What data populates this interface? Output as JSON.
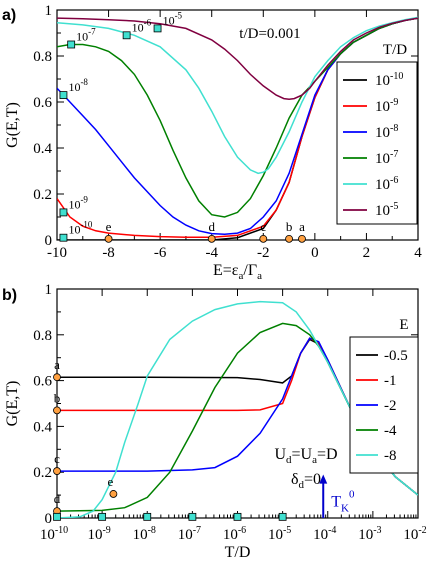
{
  "chart_data": [
    {
      "panel": "a)",
      "type": "line",
      "xlabel_main": "E=ε",
      "xlabel_sub1": "a",
      "xlabel_mid": "/Γ",
      "xlabel_sub2": "a",
      "ylabel": "G(E,T)",
      "xlim": [
        -10,
        4
      ],
      "ylim": [
        0,
        1
      ],
      "xticks": [
        -10,
        -8,
        -6,
        -4,
        -2,
        0,
        2,
        4
      ],
      "yticks": [
        0,
        0.2,
        0.4,
        0.6,
        0.8,
        1
      ],
      "ytick_labels": [
        "0",
        "0.2",
        "0.4",
        "0.6",
        "0.8",
        "1"
      ],
      "annotation": "t/D=0.001",
      "legend_title": "T/D",
      "legend_position": "right",
      "series": [
        {
          "name": "10^-10",
          "base": "10",
          "exp": "-10",
          "color": "#000000",
          "x": [
            -10,
            -9,
            -8,
            -6,
            -4,
            -3,
            -2,
            -1.5,
            -1,
            -0.5,
            0,
            0.5,
            1,
            1.5,
            2,
            2.5,
            3,
            3.5,
            4
          ],
          "y": [
            0.0,
            0.0,
            0.0,
            0.0,
            0.0,
            0.01,
            0.05,
            0.13,
            0.25,
            0.45,
            0.62,
            0.74,
            0.81,
            0.86,
            0.89,
            0.92,
            0.94,
            0.955,
            0.965
          ]
        },
        {
          "name": "10^-9",
          "base": "10",
          "exp": "-9",
          "color": "#ff0000",
          "x": [
            -10,
            -9.5,
            -9,
            -8.5,
            -8,
            -7,
            -6,
            -5,
            -4,
            -3,
            -2,
            -1.5,
            -1,
            -0.5,
            0,
            0.5,
            1,
            1.5,
            2,
            2.5,
            3,
            3.5,
            4
          ],
          "y": [
            0.18,
            0.1,
            0.06,
            0.04,
            0.03,
            0.02,
            0.015,
            0.012,
            0.012,
            0.02,
            0.06,
            0.13,
            0.25,
            0.45,
            0.62,
            0.74,
            0.81,
            0.86,
            0.89,
            0.92,
            0.94,
            0.955,
            0.965
          ]
        },
        {
          "name": "10^-8",
          "base": "10",
          "exp": "-8",
          "color": "#0000ff",
          "x": [
            -10,
            -9.5,
            -9,
            -8.5,
            -8,
            -7.5,
            -7,
            -6.5,
            -6,
            -5.5,
            -5,
            -4.5,
            -4,
            -3.5,
            -3,
            -2.5,
            -2,
            -1.5,
            -1,
            -0.5,
            0,
            0.5,
            1,
            1.5,
            2,
            2.5,
            3,
            3.5,
            4
          ],
          "y": [
            0.66,
            0.6,
            0.54,
            0.48,
            0.41,
            0.34,
            0.27,
            0.21,
            0.15,
            0.1,
            0.065,
            0.04,
            0.028,
            0.025,
            0.03,
            0.05,
            0.1,
            0.17,
            0.29,
            0.46,
            0.63,
            0.74,
            0.81,
            0.86,
            0.89,
            0.92,
            0.94,
            0.955,
            0.965
          ]
        },
        {
          "name": "10^-7",
          "base": "10",
          "exp": "-7",
          "color": "#008000",
          "x": [
            -10,
            -9.5,
            -9,
            -8.5,
            -8,
            -7.5,
            -7,
            -6.5,
            -6,
            -5.5,
            -5,
            -4.5,
            -4,
            -3.5,
            -3,
            -2.5,
            -2,
            -1.5,
            -1,
            -0.5,
            0,
            0.5,
            1,
            1.5,
            2,
            2.5,
            3,
            3.5,
            4
          ],
          "y": [
            0.84,
            0.85,
            0.85,
            0.84,
            0.82,
            0.78,
            0.72,
            0.63,
            0.52,
            0.39,
            0.27,
            0.17,
            0.11,
            0.1,
            0.12,
            0.18,
            0.28,
            0.4,
            0.53,
            0.63,
            0.69,
            0.75,
            0.81,
            0.86,
            0.89,
            0.92,
            0.94,
            0.955,
            0.965
          ]
        },
        {
          "name": "10^-6",
          "base": "10",
          "exp": "-6",
          "color": "#40e0d0",
          "x": [
            -10,
            -9,
            -8,
            -7,
            -6,
            -5,
            -4.5,
            -4,
            -3.5,
            -3,
            -2.5,
            -2.2,
            -2,
            -1.8,
            -1.5,
            -1,
            -0.5,
            0,
            0.5,
            1,
            1.5,
            2,
            2.5,
            3,
            3.5,
            4
          ],
          "y": [
            0.945,
            0.935,
            0.92,
            0.89,
            0.84,
            0.74,
            0.66,
            0.56,
            0.45,
            0.36,
            0.305,
            0.29,
            0.295,
            0.31,
            0.36,
            0.47,
            0.6,
            0.71,
            0.78,
            0.84,
            0.88,
            0.91,
            0.93,
            0.945,
            0.958,
            0.968
          ]
        },
        {
          "name": "10^-5",
          "base": "10",
          "exp": "-5",
          "color": "#800040",
          "x": [
            -10,
            -9,
            -8,
            -7,
            -6,
            -5,
            -4,
            -3.5,
            -3,
            -2.5,
            -2,
            -1.5,
            -1.2,
            -1,
            -0.8,
            -0.5,
            -0.2,
            0,
            0.5,
            1,
            1.5,
            2,
            2.5,
            3,
            3.5,
            4
          ],
          "y": [
            0.965,
            0.962,
            0.958,
            0.952,
            0.94,
            0.92,
            0.87,
            0.83,
            0.78,
            0.72,
            0.67,
            0.63,
            0.615,
            0.612,
            0.615,
            0.63,
            0.66,
            0.69,
            0.76,
            0.82,
            0.87,
            0.9,
            0.925,
            0.942,
            0.955,
            0.965
          ]
        }
      ],
      "temperature_markers": [
        {
          "x": -9.75,
          "y": 0.01,
          "base": "10",
          "exp": "-10"
        },
        {
          "x": -9.75,
          "y": 0.12,
          "base": "10",
          "exp": "-9"
        },
        {
          "x": -9.75,
          "y": 0.63,
          "base": "10",
          "exp": "-8"
        },
        {
          "x": -9.45,
          "y": 0.85,
          "base": "10",
          "exp": "-7"
        },
        {
          "x": -7.3,
          "y": 0.89,
          "base": "10",
          "exp": "-6"
        },
        {
          "x": -6.1,
          "y": 0.92,
          "base": "10",
          "exp": "-5"
        }
      ],
      "energy_markers": [
        {
          "x": -8,
          "label": "e"
        },
        {
          "x": -4,
          "label": "d"
        },
        {
          "x": -2,
          "label": "c"
        },
        {
          "x": -1,
          "label": "b"
        },
        {
          "x": -0.5,
          "label": "a"
        }
      ]
    },
    {
      "panel": "b)",
      "type": "line",
      "xscale": "log",
      "xlabel": "T/D",
      "ylabel": "G(E,T)",
      "xlim": [
        1e-10,
        0.01
      ],
      "ylim": [
        0,
        1
      ],
      "xticks_exp": [
        "-10",
        "-9",
        "-8",
        "-7",
        "-6",
        "-5",
        "-4",
        "-3",
        "-2"
      ],
      "xtick_base": "10",
      "yticks": [
        0,
        0.2,
        0.4,
        0.6,
        0.8,
        1
      ],
      "ytick_labels": [
        "0",
        "0.2",
        "0.4",
        "0.6",
        "0.8",
        "1"
      ],
      "annotation_line1": "U",
      "annotation_line1_sub1": "d",
      "annotation_line1_mid": "=U",
      "annotation_line1_sub2": "a",
      "annotation_line1_end": "=D",
      "annotation_line2": "δ",
      "annotation_line2_sub": "d",
      "annotation_line2_end": "=0",
      "arrow_label": "T",
      "arrow_label_sub": "K",
      "arrow_label_sup": "0",
      "arrow_position_logT": -4.1,
      "legend_title": "E",
      "legend_position": "right",
      "series": [
        {
          "name": "-0.5",
          "color": "#000000",
          "logT": [
            -10,
            -8,
            -6,
            -5.5,
            -5,
            -4.8,
            -4.6,
            -4.4,
            -4.2,
            -4,
            -3.5,
            -3,
            -2.5,
            -2
          ],
          "y": [
            0.615,
            0.615,
            0.613,
            0.605,
            0.59,
            0.62,
            0.72,
            0.78,
            0.76,
            0.68,
            0.48,
            0.3,
            0.18,
            0.1
          ]
        },
        {
          "name": "-1",
          "color": "#ff0000",
          "logT": [
            -10,
            -8,
            -6,
            -5.5,
            -5,
            -4.8,
            -4.6,
            -4.4,
            -4.2,
            -4,
            -3.5,
            -3,
            -2.5,
            -2
          ],
          "y": [
            0.47,
            0.47,
            0.47,
            0.472,
            0.5,
            0.6,
            0.72,
            0.785,
            0.765,
            0.69,
            0.48,
            0.3,
            0.18,
            0.1
          ]
        },
        {
          "name": "-2",
          "color": "#0000ff",
          "logT": [
            -10,
            -8,
            -7,
            -6.5,
            -6,
            -5.5,
            -5,
            -4.8,
            -4.6,
            -4.4,
            -4.2,
            -4,
            -3.5,
            -3,
            -2.5,
            -2
          ],
          "y": [
            0.205,
            0.205,
            0.21,
            0.22,
            0.27,
            0.37,
            0.52,
            0.62,
            0.72,
            0.785,
            0.77,
            0.69,
            0.48,
            0.3,
            0.18,
            0.1
          ]
        },
        {
          "name": "-4",
          "color": "#008000",
          "logT": [
            -10,
            -9,
            -8.5,
            -8,
            -7.5,
            -7,
            -6.5,
            -6,
            -5.5,
            -5,
            -4.7,
            -4.4,
            -4.2,
            -4,
            -3.5,
            -3,
            -2.5,
            -2
          ],
          "y": [
            0.03,
            0.033,
            0.045,
            0.09,
            0.2,
            0.38,
            0.57,
            0.72,
            0.81,
            0.85,
            0.84,
            0.8,
            0.75,
            0.68,
            0.48,
            0.3,
            0.18,
            0.1
          ]
        },
        {
          "name": "-8",
          "color": "#40e0d0",
          "logT": [
            -10,
            -9.5,
            -9.2,
            -9,
            -8.7,
            -8.5,
            -8.2,
            -8,
            -7.5,
            -7,
            -6.5,
            -6,
            -5.5,
            -5,
            -4.7,
            -4.4,
            -4.2,
            -4,
            -3.5,
            -3,
            -2.5,
            -2
          ],
          "y": [
            0.0,
            0.005,
            0.03,
            0.08,
            0.2,
            0.33,
            0.5,
            0.62,
            0.78,
            0.86,
            0.91,
            0.935,
            0.945,
            0.94,
            0.9,
            0.82,
            0.75,
            0.68,
            0.48,
            0.3,
            0.18,
            0.1
          ]
        }
      ],
      "energy_markers": [
        {
          "logT": -10,
          "y": 0.615,
          "label": "a"
        },
        {
          "logT": -10,
          "y": 0.47,
          "label": "b"
        },
        {
          "logT": -10,
          "y": 0.205,
          "label": "c"
        },
        {
          "logT": -10,
          "y": 0.03,
          "label": "d"
        },
        {
          "logT": -8.75,
          "y": 0.105,
          "label": "e"
        }
      ],
      "temperature_markers_logT": [
        -10,
        -9,
        -8,
        -7,
        -6,
        -5
      ]
    }
  ],
  "colors": {
    "marker_square": "#40e0d0",
    "marker_circle": "#ffa040"
  }
}
